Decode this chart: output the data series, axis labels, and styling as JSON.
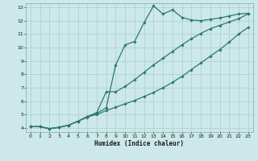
{
  "title": "",
  "xlabel": "Humidex (Indice chaleur)",
  "bg_color": "#cce8e8",
  "grid_color": "#aacece",
  "line_color": "#2a7a6a",
  "xlim": [
    -0.5,
    23.5
  ],
  "ylim": [
    3.7,
    13.3
  ],
  "xticks": [
    0,
    1,
    2,
    3,
    4,
    5,
    6,
    7,
    8,
    9,
    10,
    11,
    12,
    13,
    14,
    15,
    16,
    17,
    18,
    19,
    20,
    21,
    22,
    23
  ],
  "yticks": [
    4,
    5,
    6,
    7,
    8,
    9,
    10,
    11,
    12,
    13
  ],
  "line1_x": [
    0,
    1,
    2,
    3,
    4,
    5,
    6,
    7,
    8,
    9,
    10,
    11,
    12,
    13,
    14,
    15,
    16,
    17,
    18,
    19,
    20,
    21,
    22,
    23
  ],
  "line1_y": [
    4.1,
    4.1,
    3.95,
    4.05,
    4.2,
    4.5,
    4.8,
    5.1,
    5.5,
    8.7,
    10.2,
    10.45,
    11.85,
    13.1,
    12.5,
    12.8,
    12.25,
    12.05,
    12.0,
    12.1,
    12.2,
    12.35,
    12.5,
    12.55
  ],
  "line2_x": [
    0,
    1,
    2,
    3,
    4,
    5,
    6,
    7,
    8,
    9,
    10,
    11,
    12,
    13,
    14,
    15,
    16,
    17,
    18,
    19,
    20,
    21,
    22,
    23
  ],
  "line2_y": [
    4.1,
    4.1,
    3.95,
    4.05,
    4.2,
    4.5,
    4.85,
    5.15,
    6.7,
    6.7,
    7.1,
    7.6,
    8.15,
    8.7,
    9.2,
    9.7,
    10.2,
    10.65,
    11.05,
    11.4,
    11.65,
    11.9,
    12.15,
    12.5
  ],
  "line3_x": [
    0,
    1,
    2,
    3,
    4,
    5,
    6,
    7,
    8,
    9,
    10,
    11,
    12,
    13,
    14,
    15,
    16,
    17,
    18,
    19,
    20,
    21,
    22,
    23
  ],
  "line3_y": [
    4.1,
    4.1,
    3.95,
    4.05,
    4.2,
    4.5,
    4.85,
    5.0,
    5.3,
    5.55,
    5.8,
    6.05,
    6.35,
    6.65,
    7.0,
    7.4,
    7.85,
    8.35,
    8.85,
    9.35,
    9.85,
    10.4,
    11.0,
    11.5
  ]
}
